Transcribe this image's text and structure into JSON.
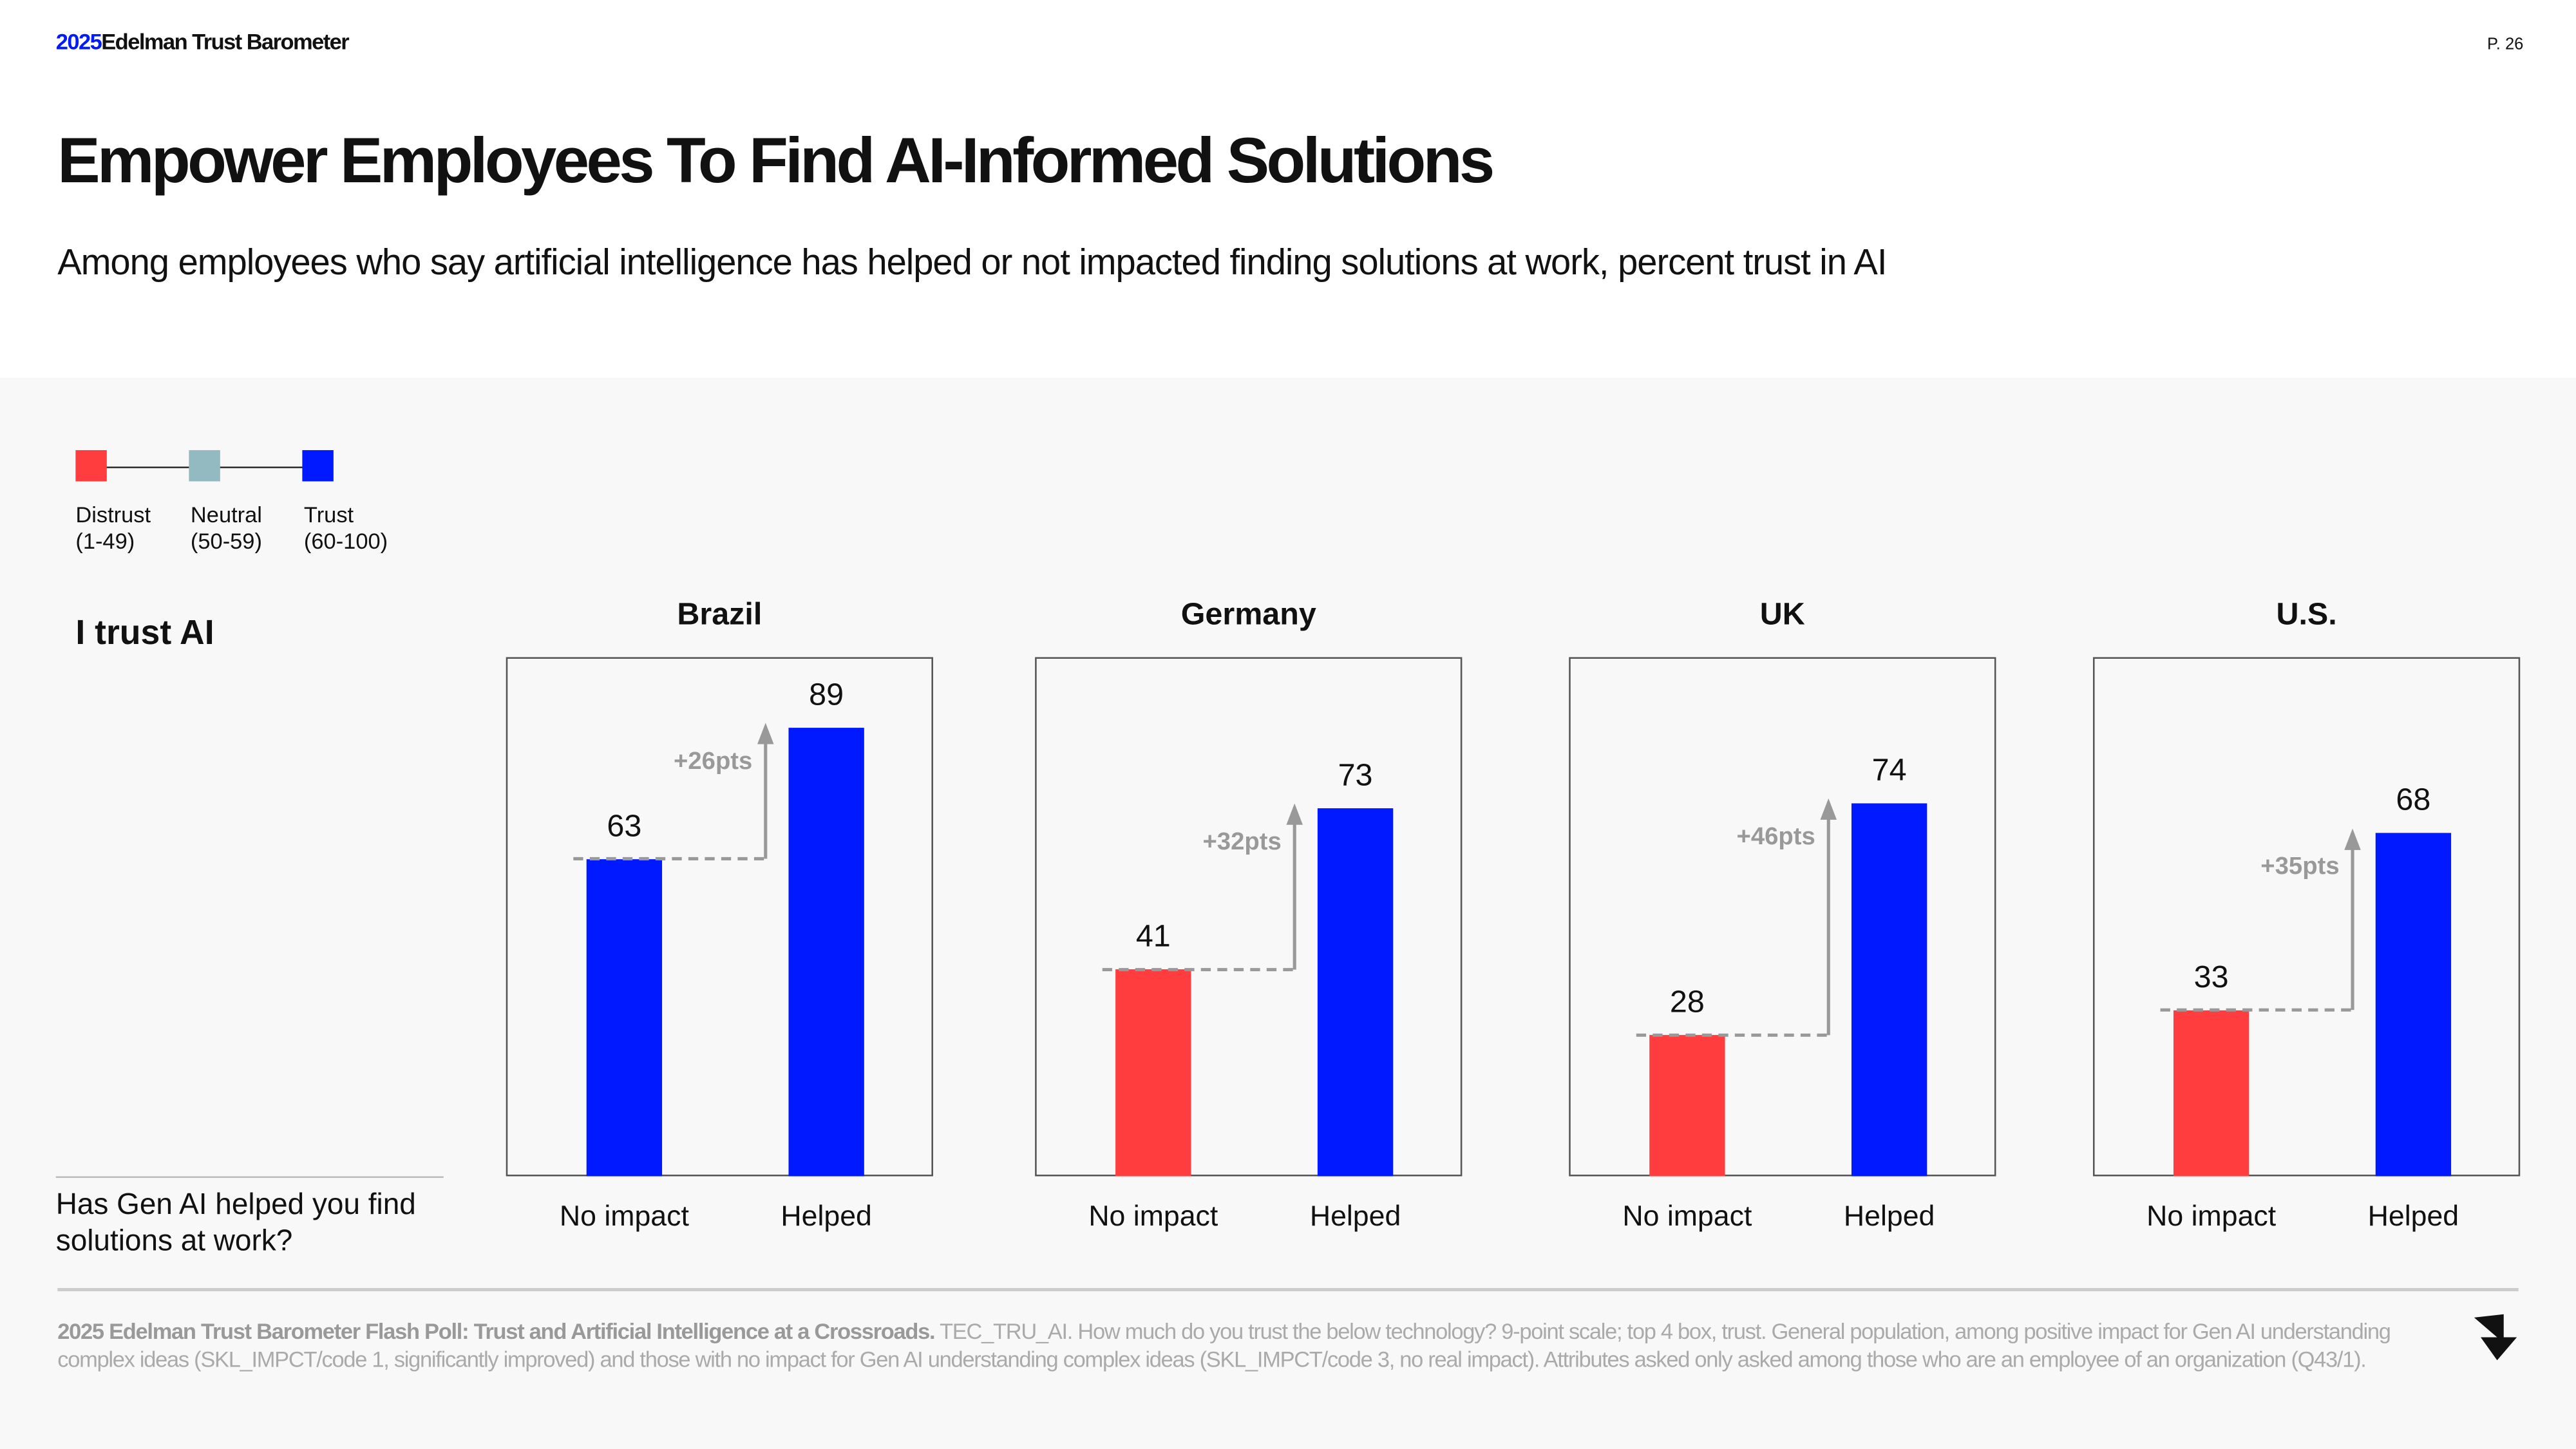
{
  "header": {
    "brand_year": "2025",
    "brand_name": "Edelman Trust Barometer",
    "page": "P. 26"
  },
  "title": "Empower Employees To Find AI-Informed Solutions",
  "subtitle": "Among employees who say artificial intelligence has helped or not impacted finding solutions at work, percent trust in AI",
  "legend": [
    {
      "label": "Distrust",
      "range": "(1-49)",
      "color": "#ff3d3f"
    },
    {
      "label": "Neutral",
      "range": "(50-59)",
      "color": "#93bac0"
    },
    {
      "label": "Trust",
      "range": "(60-100)",
      "color": "#0019ff"
    }
  ],
  "row_label": "I trust AI",
  "question": "Has Gen AI helped you find solutions at work?",
  "chart_data": {
    "type": "bar",
    "categories": [
      "No impact",
      "Helped"
    ],
    "ylim": [
      0,
      100
    ],
    "grid": false,
    "color_rule": {
      "distrust_max": 49,
      "neutral_max": 59
    },
    "panels": [
      {
        "title": "Brazil",
        "values": [
          63,
          89
        ],
        "delta": "+26pts"
      },
      {
        "title": "Germany",
        "values": [
          41,
          73
        ],
        "delta": "+32pts"
      },
      {
        "title": "UK",
        "values": [
          28,
          74
        ],
        "delta": "+46pts"
      },
      {
        "title": "U.S.",
        "values": [
          33,
          68
        ],
        "delta": "+35pts"
      }
    ]
  },
  "footnote": {
    "bold": "2025 Edelman Trust Barometer Flash Poll: Trust and Artificial Intelligence at a Crossroads.",
    "text": " TEC_TRU_AI. How much do you trust the below technology? 9-point scale; top 4 box, trust. General population, among positive impact for Gen AI understanding complex ideas (SKL_IMPCT/code 1, significantly improved) and those with no impact for Gen AI understanding complex ideas (SKL_IMPCT/code 3, no real impact). Attributes asked only asked among those who are an employee of an organization (Q43/1)."
  }
}
